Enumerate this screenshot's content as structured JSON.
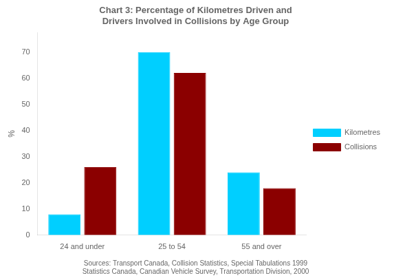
{
  "chart_data": {
    "type": "bar",
    "title": "Chart 3: Percentage of Kilometres Driven and\nDrivers Involved in Collisions by Age Group",
    "categories": [
      "24 and under",
      "25 to 54",
      "55 and over"
    ],
    "series": [
      {
        "name": "Kilometres",
        "color": "#00CFFF",
        "values": [
          8,
          70,
          24
        ]
      },
      {
        "name": "Collisions",
        "color": "#8B0000",
        "values": [
          26,
          62,
          18
        ]
      }
    ],
    "ylabel": "%",
    "ylim": [
      0,
      77.5
    ],
    "yticks": [
      0,
      10,
      20,
      30,
      40,
      50,
      60,
      70
    ],
    "grid": false,
    "legend": "right",
    "annotations": [
      "Sources: Transport Canada, Collision Statistics, Special Tabulations 1999",
      "Statistics Canada, Canadian Vehicle Survey, Transportation Division, 2000"
    ]
  }
}
